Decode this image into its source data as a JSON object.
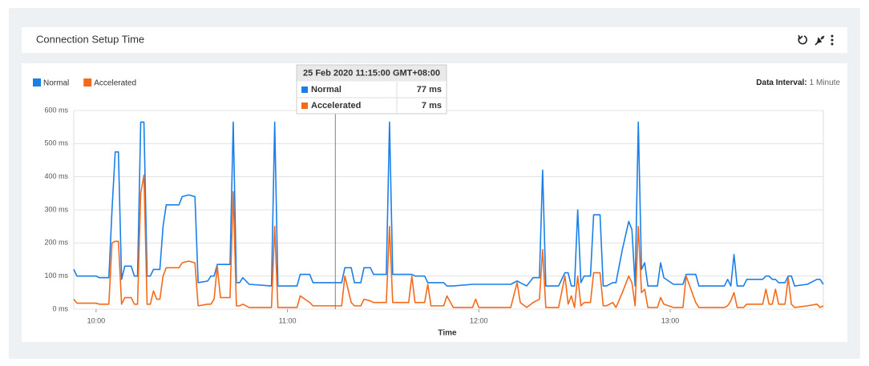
{
  "header": {
    "title": "Connection Setup Time"
  },
  "chart_data": {
    "type": "line",
    "x_label": "Time",
    "interval_label": "Data Interval:",
    "interval_value": "1 Minute",
    "x": [
      "09:53",
      "09:54",
      "10:00",
      "10:01",
      "10:04",
      "10:05",
      "10:06",
      "10:07",
      "10:08",
      "10:09",
      "10:11",
      "10:12",
      "10:13",
      "10:14",
      "10:15",
      "10:16",
      "10:17",
      "10:18",
      "10:19",
      "10:20",
      "10:21",
      "10:22",
      "10:26",
      "10:27",
      "10:29",
      "10:31",
      "10:32",
      "10:35",
      "10:36",
      "10:37",
      "10:38",
      "10:39",
      "10:42",
      "10:43",
      "10:44",
      "10:45",
      "10:46",
      "10:48",
      "10:55",
      "10:56",
      "10:57",
      "11:03",
      "11:04",
      "11:07",
      "11:08",
      "11:17",
      "11:18",
      "11:20",
      "11:21",
      "11:23",
      "11:24",
      "11:26",
      "11:27",
      "11:31",
      "11:32",
      "11:33",
      "11:38",
      "11:39",
      "11:40",
      "11:43",
      "11:44",
      "11:45",
      "11:49",
      "11:50",
      "11:52",
      "11:58",
      "11:59",
      "12:00",
      "12:10",
      "12:12",
      "12:13",
      "12:15",
      "12:17",
      "12:19",
      "12:20",
      "12:21",
      "12:25",
      "12:27",
      "12:28",
      "12:29",
      "12:30",
      "12:31",
      "12:32",
      "12:33",
      "12:35",
      "12:36",
      "12:38",
      "12:39",
      "12:40",
      "12:42",
      "12:43",
      "12:45",
      "12:47",
      "12:48",
      "12:49",
      "12:50",
      "12:51",
      "12:52",
      "12:53",
      "12:56",
      "12:57",
      "12:58",
      "13:01",
      "13:04",
      "13:05",
      "13:08",
      "13:09",
      "13:17",
      "13:18",
      "13:19",
      "13:20",
      "13:21",
      "13:23",
      "13:24",
      "13:29",
      "13:30",
      "13:31",
      "13:32",
      "13:33",
      "13:34",
      "13:36",
      "13:37",
      "13:38",
      "13:39",
      "13:43",
      "13:46",
      "13:47",
      "13:48"
    ],
    "series": [
      {
        "name": "Normal",
        "color": "#1a7fe8",
        "values": [
          120,
          100,
          100,
          95,
          95,
          300,
          475,
          475,
          90,
          130,
          130,
          100,
          100,
          565,
          565,
          100,
          100,
          120,
          120,
          120,
          250,
          315,
          315,
          340,
          345,
          340,
          80,
          85,
          100,
          100,
          135,
          135,
          135,
          565,
          80,
          80,
          95,
          75,
          70,
          565,
          70,
          70,
          105,
          105,
          80,
          80,
          125,
          125,
          80,
          80,
          125,
          125,
          105,
          105,
          565,
          105,
          105,
          105,
          100,
          100,
          80,
          80,
          80,
          70,
          70,
          75,
          75,
          75,
          75,
          85,
          80,
          70,
          95,
          95,
          420,
          70,
          70,
          110,
          110,
          70,
          70,
          300,
          80,
          100,
          100,
          285,
          285,
          70,
          70,
          80,
          80,
          180,
          265,
          240,
          70,
          565,
          120,
          140,
          70,
          70,
          140,
          95,
          75,
          75,
          105,
          105,
          70,
          70,
          90,
          70,
          165,
          70,
          70,
          90,
          90,
          100,
          100,
          90,
          90,
          80,
          80,
          100,
          100,
          70,
          75,
          90,
          90,
          75
        ]
      },
      {
        "name": "Accelerated",
        "color": "#f56a1a",
        "values": [
          30,
          18,
          18,
          15,
          15,
          200,
          205,
          205,
          15,
          35,
          35,
          15,
          15,
          350,
          405,
          15,
          15,
          55,
          30,
          30,
          100,
          125,
          125,
          140,
          145,
          140,
          10,
          15,
          15,
          30,
          130,
          35,
          35,
          355,
          10,
          10,
          15,
          5,
          5,
          250,
          5,
          5,
          40,
          20,
          10,
          10,
          100,
          20,
          10,
          10,
          30,
          25,
          20,
          20,
          250,
          20,
          20,
          100,
          20,
          20,
          75,
          10,
          10,
          40,
          5,
          5,
          30,
          5,
          5,
          80,
          20,
          5,
          20,
          30,
          180,
          5,
          5,
          100,
          15,
          40,
          5,
          100,
          10,
          20,
          20,
          110,
          110,
          10,
          10,
          20,
          5,
          50,
          100,
          80,
          10,
          250,
          50,
          60,
          5,
          5,
          35,
          15,
          5,
          5,
          100,
          20,
          5,
          5,
          10,
          25,
          50,
          5,
          5,
          15,
          15,
          60,
          15,
          15,
          60,
          15,
          15,
          95,
          15,
          5,
          10,
          15,
          5,
          10
        ]
      }
    ],
    "xlim": [
      "09:53",
      "13:48"
    ],
    "xticks": [
      "10:00",
      "11:00",
      "12:00",
      "13:00"
    ],
    "ylim": [
      0,
      600
    ],
    "yticks": [
      {
        "value": 0,
        "label": "0 ms"
      },
      {
        "value": 100,
        "label": "100 ms"
      },
      {
        "value": 200,
        "label": "200 ms"
      },
      {
        "value": 300,
        "label": "300 ms"
      },
      {
        "value": 400,
        "label": "400 ms"
      },
      {
        "value": 500,
        "label": "500 ms"
      },
      {
        "value": 600,
        "label": "600 ms"
      }
    ],
    "grid": true,
    "legend": "top-left",
    "tooltip": {
      "x": "11:15",
      "title": "25 Feb 2020 11:15:00 GMT+08:00",
      "values": [
        77,
        7
      ],
      "value_labels": [
        "77 ms",
        "7 ms"
      ]
    }
  }
}
